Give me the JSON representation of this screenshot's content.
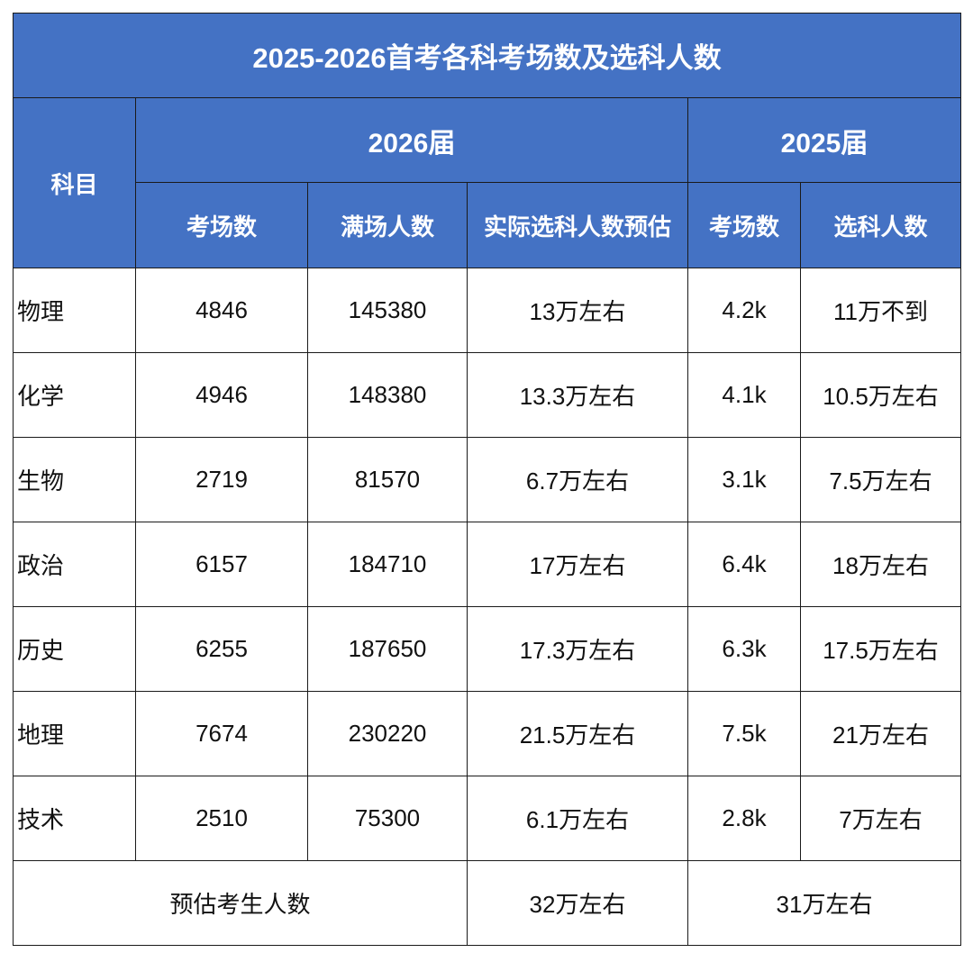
{
  "title": "2025-2026首考各科考场数及选科人数",
  "header": {
    "subject": "科目",
    "group_2026": "2026届",
    "group_2025": "2025届",
    "columns_2026": [
      "考场数",
      "满场人数",
      "实际选科人数预估"
    ],
    "columns_2025": [
      "考场数",
      "选科人数"
    ]
  },
  "rows": [
    [
      "物理",
      "4846",
      "145380",
      "13万左右",
      "4.2k",
      "11万不到"
    ],
    [
      "化学",
      "4946",
      "148380",
      "13.3万左右",
      "4.1k",
      "10.5万左右"
    ],
    [
      "生物",
      "2719",
      "81570",
      "6.7万左右",
      "3.1k",
      "7.5万左右"
    ],
    [
      "政治",
      "6157",
      "184710",
      "17万左右",
      "6.4k",
      "18万左右"
    ],
    [
      "历史",
      "6255",
      "187650",
      "17.3万左右",
      "6.3k",
      "17.5万左右"
    ],
    [
      "地理",
      "7674",
      "230220",
      "21.5万左右",
      "7.5k",
      "21万左右"
    ],
    [
      "技术",
      "2510",
      "75300",
      "6.1万左右",
      "2.8k",
      "7万左右"
    ]
  ],
  "footer": {
    "label": "预估考生人数",
    "value_2026": "32万左右",
    "value_2025": "31万左右"
  }
}
